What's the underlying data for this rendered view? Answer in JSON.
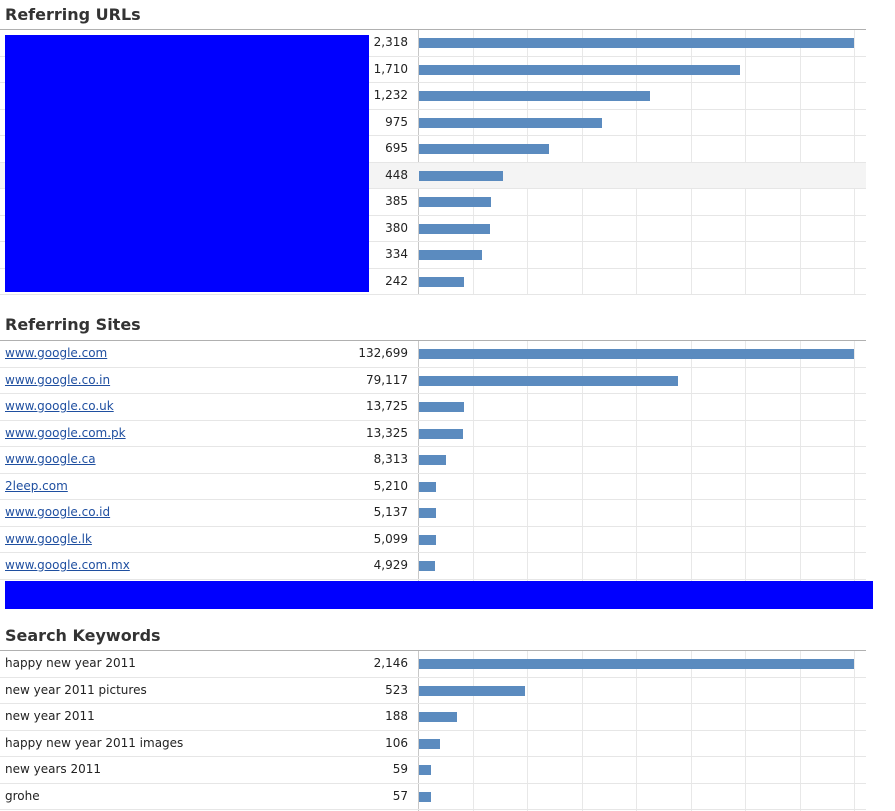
{
  "colors": {
    "bar": "#5b8bbf",
    "redaction": "#0000ff",
    "link": "#1f4fa0"
  },
  "sections": [
    {
      "id": "referring-urls",
      "title": "Referring URLs",
      "label_style": "redacted",
      "max": 2318,
      "rows": [
        {
          "label": "",
          "value": "2,318",
          "num": 2318
        },
        {
          "label": "",
          "value": "1,710",
          "num": 1710
        },
        {
          "label": "",
          "value": "1,232",
          "num": 1232
        },
        {
          "label": "",
          "value": "975",
          "num": 975
        },
        {
          "label": "",
          "value": "695",
          "num": 695
        },
        {
          "label": "",
          "value": "448",
          "num": 448,
          "highlighted": true
        },
        {
          "label": "",
          "value": "385",
          "num": 385
        },
        {
          "label": "",
          "value": "380",
          "num": 380
        },
        {
          "label": "",
          "value": "334",
          "num": 334
        },
        {
          "label": "",
          "value": "242",
          "num": 242
        }
      ]
    },
    {
      "id": "referring-sites",
      "title": "Referring Sites",
      "label_style": "link",
      "max": 132699,
      "rows": [
        {
          "label": "www.google.com",
          "value": "132,699",
          "num": 132699
        },
        {
          "label": "www.google.co.in",
          "value": "79,117",
          "num": 79117
        },
        {
          "label": "www.google.co.uk",
          "value": "13,725",
          "num": 13725
        },
        {
          "label": "www.google.com.pk",
          "value": "13,325",
          "num": 13325
        },
        {
          "label": "www.google.ca",
          "value": "8,313",
          "num": 8313
        },
        {
          "label": "2leep.com",
          "value": "5,210",
          "num": 5210
        },
        {
          "label": "www.google.co.id",
          "value": "5,137",
          "num": 5137
        },
        {
          "label": "www.google.lk",
          "value": "5,099",
          "num": 5099
        },
        {
          "label": "www.google.com.mx",
          "value": "4,929",
          "num": 4929
        }
      ]
    },
    {
      "id": "search-keywords",
      "title": "Search Keywords",
      "label_style": "text",
      "max": 2146,
      "rows": [
        {
          "label": "happy new year 2011",
          "value": "2,146",
          "num": 2146
        },
        {
          "label": "new year 2011 pictures",
          "value": "523",
          "num": 523
        },
        {
          "label": "new year 2011",
          "value": "188",
          "num": 188
        },
        {
          "label": "happy new year 2011 images",
          "value": "106",
          "num": 106
        },
        {
          "label": "new years 2011",
          "value": "59",
          "num": 59
        },
        {
          "label": "grohe",
          "value": "57",
          "num": 57
        }
      ]
    }
  ]
}
